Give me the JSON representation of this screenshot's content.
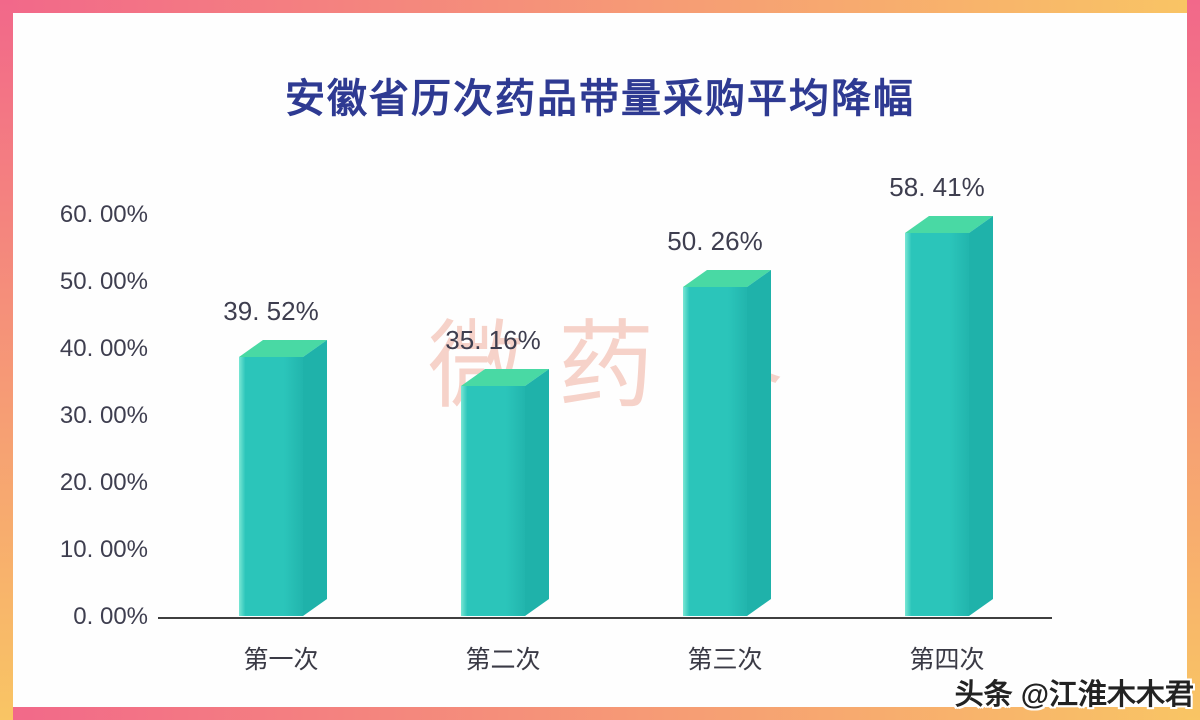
{
  "title": "安徽省历次药品带量采购平均降幅",
  "watermark_center": "微药界",
  "watermark_corner": "头条 @江淮木木君",
  "colors": {
    "border_pink": "#F2688A",
    "border_orange": "#F9C564",
    "title": "#2E3A92",
    "axis_text": "#3E3E4F",
    "axis_line": "#3F3F3F",
    "bar_front": "#2BC5BA",
    "bar_front_highlight": "#79E7D4",
    "bar_front_dark": "#22B5AD",
    "bar_top": "#49D9A4",
    "bar_side": "#1FB2AA",
    "watermark": "#EE9E8A"
  },
  "chart_data": {
    "type": "bar",
    "style": "3d-bar",
    "title": "安徽省历次药品带量采购平均降幅",
    "categories": [
      "第一次",
      "第二次",
      "第三次",
      "第四次"
    ],
    "values": [
      39.52,
      35.16,
      50.26,
      58.41
    ],
    "value_labels": [
      "39. 52%",
      "35. 16%",
      "50. 26%",
      "58. 41%"
    ],
    "y_ticks": [
      {
        "value": 60,
        "label": "60. 00%"
      },
      {
        "value": 50,
        "label": "50. 00%"
      },
      {
        "value": 40,
        "label": "40. 00%"
      },
      {
        "value": 30,
        "label": "30. 00%"
      },
      {
        "value": 20,
        "label": "20. 00%"
      },
      {
        "value": 10,
        "label": "10. 00%"
      },
      {
        "value": 0,
        "label": "0. 00%"
      }
    ],
    "ylim": [
      0,
      60
    ],
    "xlabel": "",
    "ylabel": "",
    "grid": false,
    "legend": null
  }
}
